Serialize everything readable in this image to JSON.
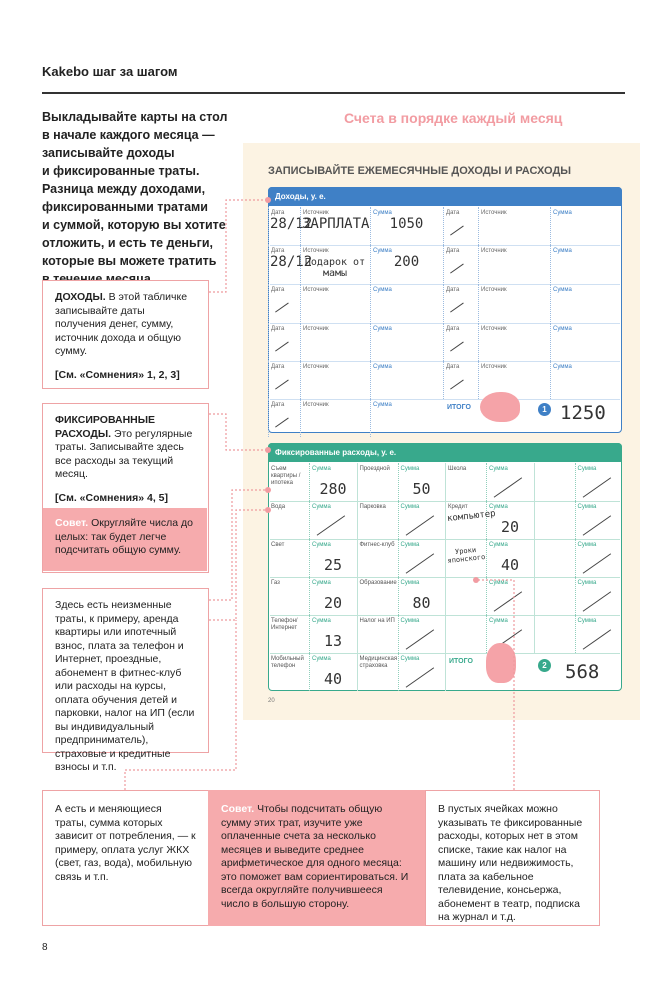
{
  "header": {
    "title": "Kakebo шаг за шагом",
    "page_number": "8"
  },
  "intro": {
    "lines": [
      "Выкладывайте карты на стол",
      "в начале каждого месяца —",
      "записывайте доходы",
      "и фиксированные траты.",
      "Разница между доходами,",
      "фиксированными тратами",
      "и суммой, которую вы хотите",
      "отложить, и есть те деньги,",
      "которые вы можете тратить",
      "в течение месяца."
    ]
  },
  "income_note": {
    "title": "ДОХОДЫ.",
    "text": "В этой табличке записывайте даты получения денег, сумму, источник дохода и общую сумму.",
    "ref": "[См. «Сомнения» 1, 2, 3]"
  },
  "fixed_note": {
    "title": "ФИКСИРОВАННЫЕ РАСХОДЫ.",
    "text": "Это регулярные траты. Записывайте здесь все расходы за текущий месяц.",
    "ref": "[См. «Сомнения» 4, 5]",
    "tip_label": "Совет.",
    "tip": "Округляйте числа до целых: так будет легче подсчитать общую сумму."
  },
  "examples_note": {
    "text": "Здесь есть неизменные траты, к примеру, аренда квартиры или ипотечный взнос, плата за телефон и Интернет, проездные, абонемент в фитнес-клуб или расходы на курсы, оплата обучения детей и парковки, налог на ИП (если вы индивидуальный предприниматель), страховые и кредитные взносы и т.п."
  },
  "variable_note": {
    "text": "А есть и меняющиеся траты, сумма которых зависит от потребления, — к примеру, оплата услуг ЖКХ (свет, газ, вода), мобильную связь и т.п."
  },
  "average_tip": {
    "label": "Совет.",
    "text": "Чтобы подсчитать общую сумму этих трат, изучите уже оплаченные счета за несколько месяцев и выведите среднее арифметическое для одного месяца: это поможет вам сориентироваться. И всегда округляйте получившееся число в большую сторону."
  },
  "empty_cells_note": {
    "text": "В пустых ячейках можно указывать те фиксированные расходы, которых нет в этом списке, такие как налог на машину или недвижимость, плата за кабельное телевидение, консьержа, абонемент в театр, подписка на журнал и т.д."
  },
  "sheet": {
    "heading": "Счета в порядке каждый месяц",
    "title": "ЗАПИСЫВАЙТЕ ЕЖЕМЕСЯЧНЫЕ ДОХОДЫ И РАСХОДЫ",
    "page_number": "20",
    "income": {
      "title": "Доходы, у. е.",
      "date_label": "Дата",
      "source_label": "Источник",
      "amount_label": "Сумма",
      "entries": [
        {
          "date": "28/12",
          "source": "ЗАРПЛАТА",
          "amount": 1050
        },
        {
          "date": "28/12",
          "source": "Подарок от мамы",
          "amount": 200
        }
      ],
      "total_label": "ИТОГО",
      "total_marker": "1",
      "total": 1250
    },
    "fixed": {
      "title": "Фиксированные расходы, у. е.",
      "amount_label": "Сумма",
      "rows": [
        [
          {
            "label": "Съем квартиры / ипотека",
            "amount": 280
          },
          {
            "label": "Проездной",
            "amount": 50
          },
          {
            "label": "Школа"
          },
          {}
        ],
        [
          {
            "label": "Вода"
          },
          {
            "label": "Парковка"
          },
          {
            "label": "Кредит",
            "note": "компьютер",
            "amount": 20
          },
          {}
        ],
        [
          {
            "label": "Свет",
            "amount": 25
          },
          {
            "label": "Фитнес-клуб"
          },
          {
            "note": "Уроки японского",
            "amount": 40
          },
          {}
        ],
        [
          {
            "label": "Газ",
            "amount": 20
          },
          {
            "label": "Образование",
            "amount": 80
          },
          {},
          {}
        ],
        [
          {
            "label": "Телефон/ Интернет",
            "amount": 13
          },
          {
            "label": "Налог на ИП"
          },
          {},
          {}
        ],
        [
          {
            "label": "Мобильный телефон",
            "amount": 40
          },
          {
            "label": "Медицинская страховка"
          }
        ]
      ],
      "total_label": "ИТОГО",
      "total_marker": "2",
      "total": 568
    }
  }
}
